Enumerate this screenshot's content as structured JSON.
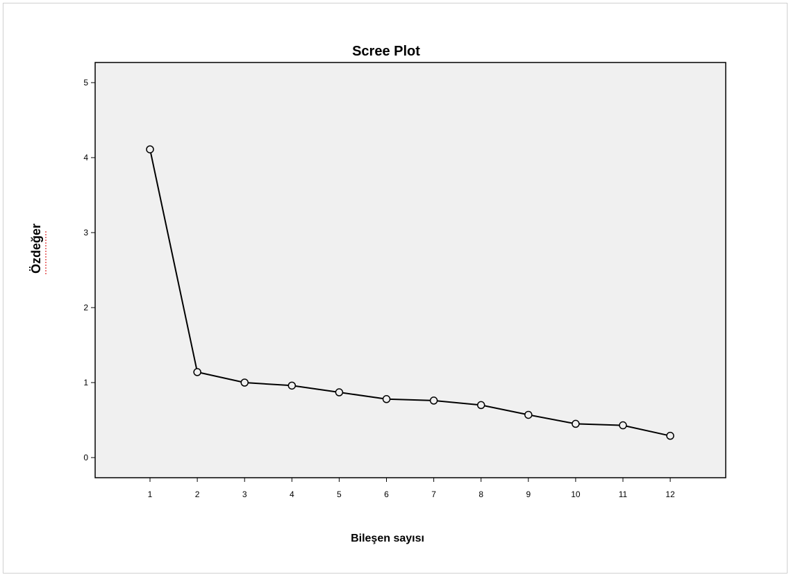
{
  "chart_data": {
    "type": "line",
    "title": "Scree Plot",
    "xlabel": "Bileşen sayısı",
    "ylabel": "Özdeğer",
    "x": [
      1,
      2,
      3,
      4,
      5,
      6,
      7,
      8,
      9,
      10,
      11,
      12
    ],
    "y": [
      4.11,
      1.14,
      1.0,
      0.96,
      0.87,
      0.78,
      0.76,
      0.7,
      0.57,
      0.45,
      0.43,
      0.29
    ],
    "xticks": [
      "1",
      "2",
      "3",
      "4",
      "5",
      "6",
      "7",
      "8",
      "9",
      "10",
      "11",
      "12"
    ],
    "yticks": [
      "0",
      "1",
      "2",
      "3",
      "4",
      "5"
    ],
    "ylim": [
      0,
      5
    ],
    "grid": false,
    "marker": "open-circle",
    "colors": {
      "plot_background": "#f0f0f0",
      "line": "#000000"
    }
  }
}
